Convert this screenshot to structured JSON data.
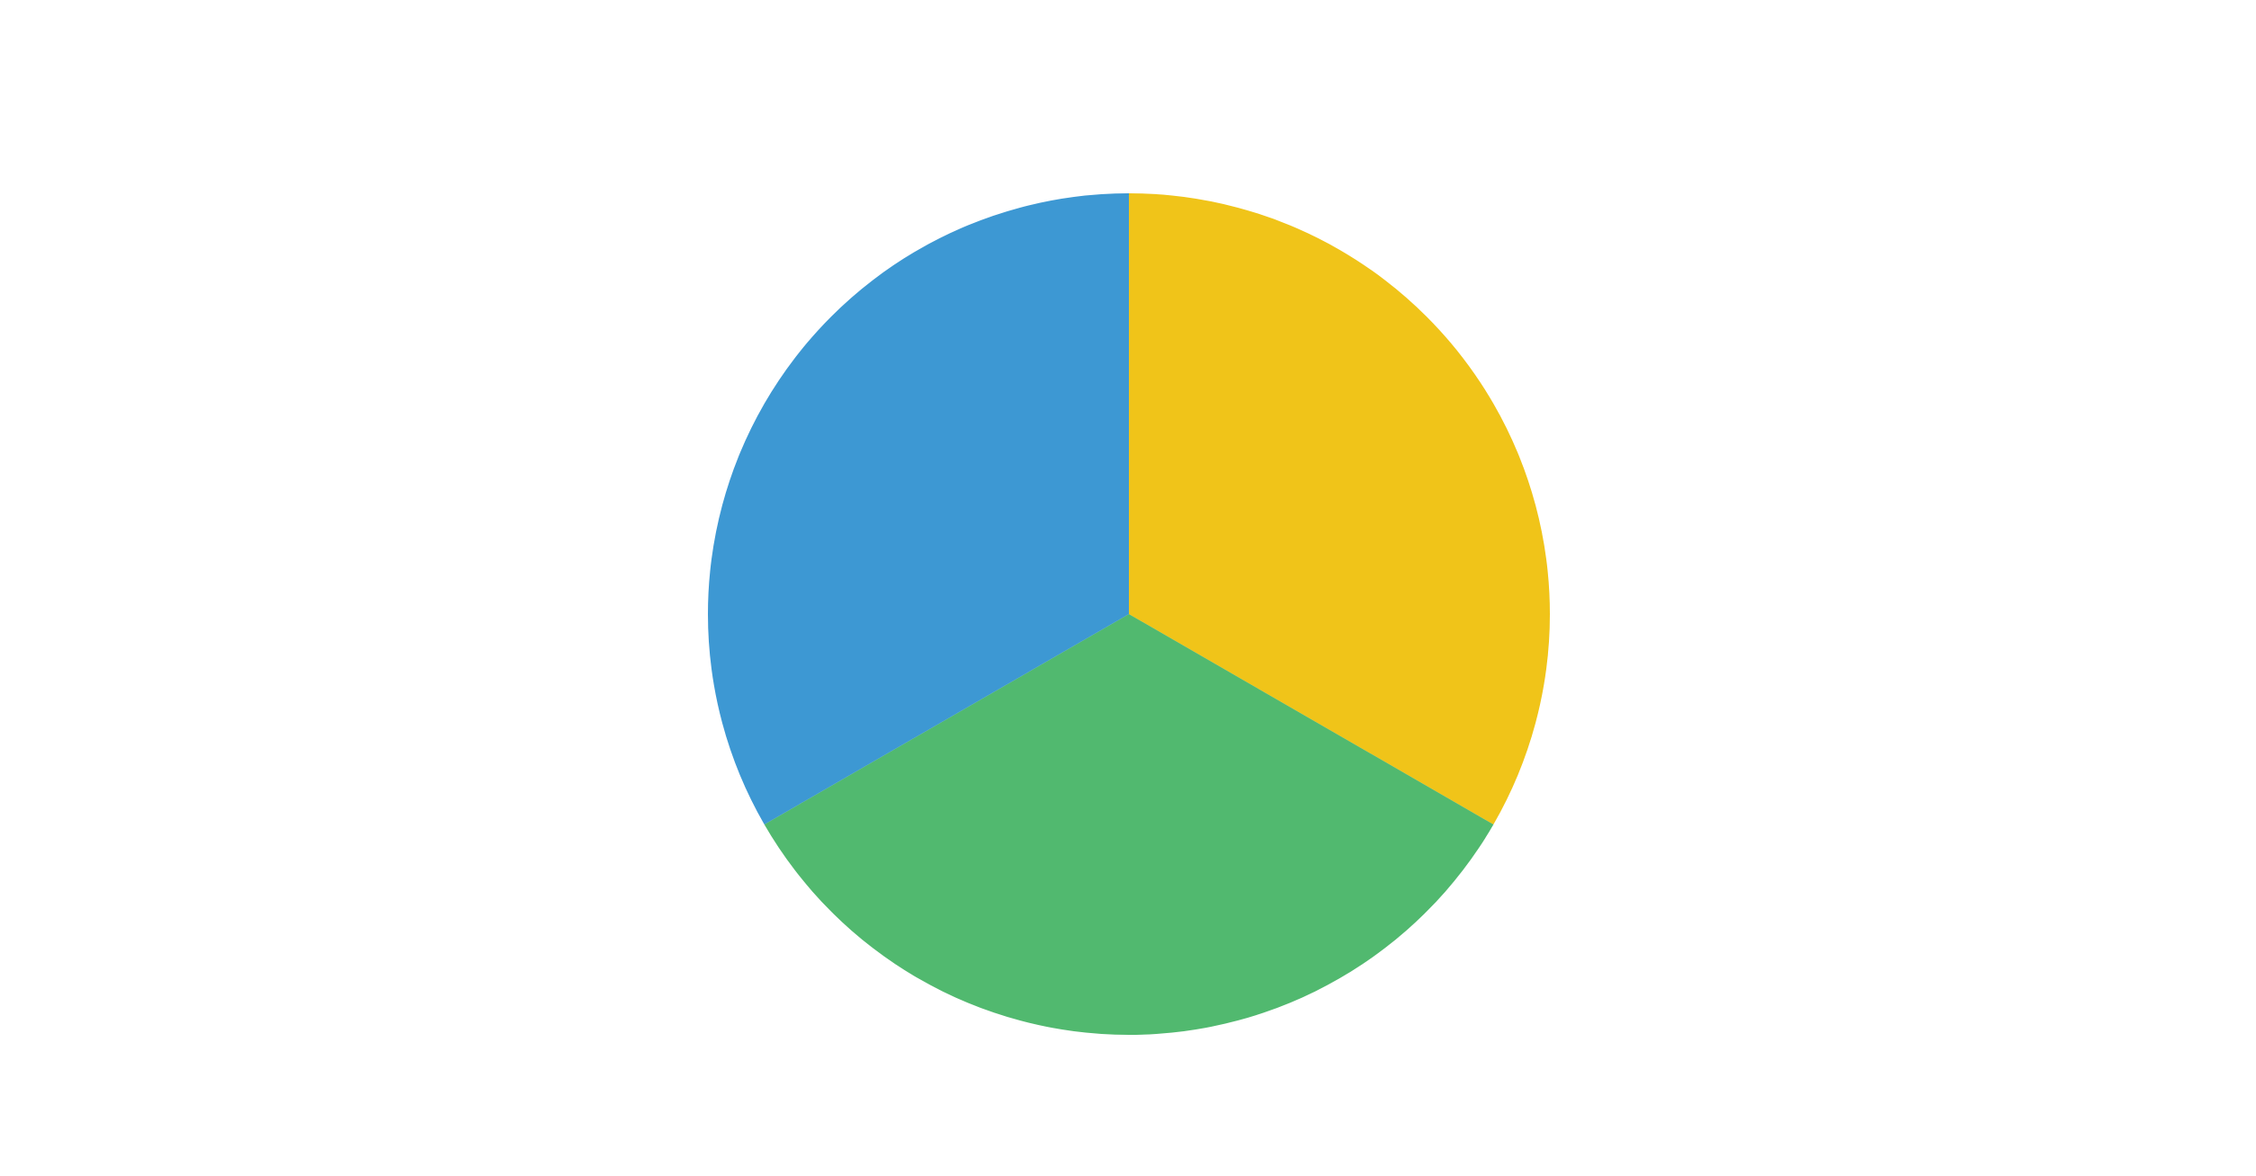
{
  "chart_data": {
    "type": "pie",
    "start_angle": "top",
    "direction": "clockwise",
    "slices": [
      {
        "value": 33.33,
        "color": "#f0c419"
      },
      {
        "value": 33.33,
        "color": "#51b96f"
      },
      {
        "value": 33.33,
        "color": "#3d98d3"
      }
    ]
  }
}
